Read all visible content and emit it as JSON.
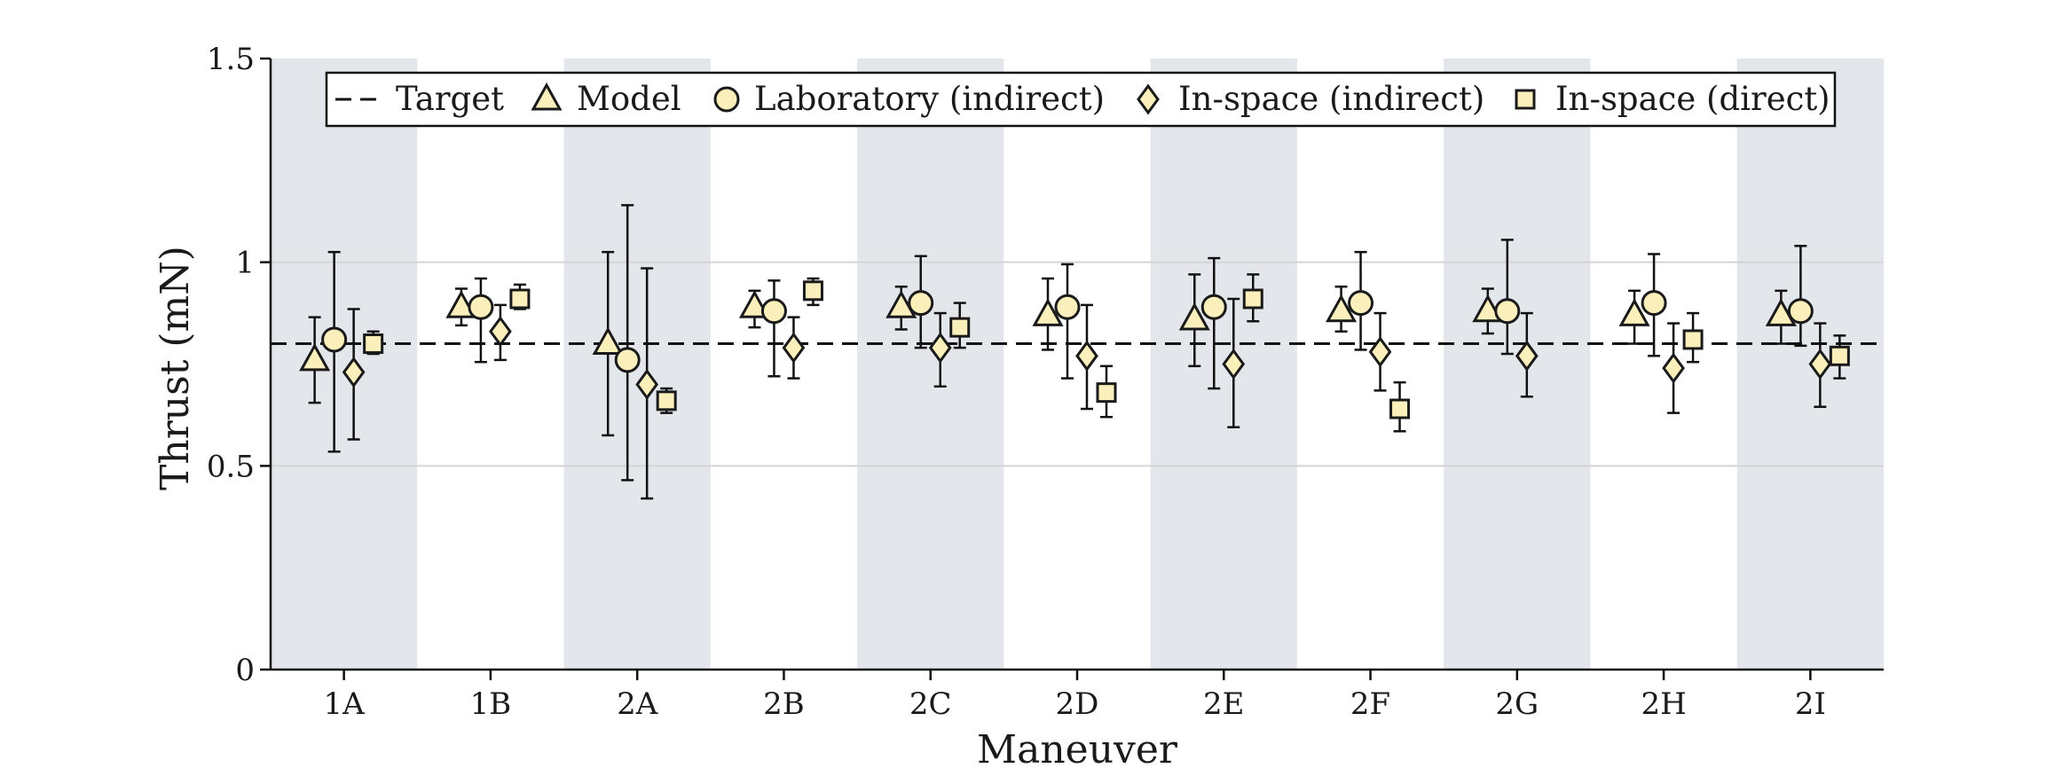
{
  "chart_data": {
    "type": "scatter",
    "xlabel": "Maneuver",
    "ylabel": "Thrust (mN)",
    "ylim": [
      0,
      1.5
    ],
    "yticks": [
      0,
      0.5,
      1,
      1.5
    ],
    "ytick_labels": [
      "0",
      "0.5",
      "1",
      "1.5"
    ],
    "grid": "horizontal",
    "legend_position": "top-center",
    "target_value": 0.8,
    "target_label": "Target",
    "categories": [
      "1A",
      "1B",
      "2A",
      "2B",
      "2C",
      "2D",
      "2E",
      "2F",
      "2G",
      "2H",
      "2I"
    ],
    "shaded_categories": [
      "1A",
      "2A",
      "2C",
      "2E",
      "2G",
      "2I"
    ],
    "colors": {
      "marker_fill": "#fbf0bb",
      "marker_edge": "#1a1a1a",
      "band": "#e3e6ea",
      "grid": "#d4d4d4"
    },
    "series": [
      {
        "name": "Model",
        "marker": "triangle",
        "values": [
          0.76,
          0.89,
          0.8,
          0.89,
          0.89,
          0.87,
          0.86,
          0.88,
          0.88,
          0.87,
          0.87
        ],
        "err_low": [
          0.655,
          0.845,
          0.575,
          0.84,
          0.835,
          0.785,
          0.745,
          0.83,
          0.825,
          0.8,
          0.8
        ],
        "err_high": [
          0.865,
          0.935,
          1.025,
          0.93,
          0.94,
          0.96,
          0.97,
          0.94,
          0.935,
          0.93,
          0.93
        ]
      },
      {
        "name": "Laboratory (indirect)",
        "marker": "circle",
        "values": [
          0.81,
          0.89,
          0.76,
          0.88,
          0.9,
          0.89,
          0.89,
          0.9,
          0.88,
          0.9,
          0.88
        ],
        "err_low": [
          0.535,
          0.755,
          0.465,
          0.72,
          0.79,
          0.715,
          0.69,
          0.785,
          0.775,
          0.77,
          0.795
        ],
        "err_high": [
          1.025,
          0.96,
          1.14,
          0.955,
          1.015,
          0.995,
          1.01,
          1.025,
          1.055,
          1.02,
          1.04
        ]
      },
      {
        "name": "In-space (indirect)",
        "marker": "diamond",
        "values": [
          0.73,
          0.83,
          0.7,
          0.79,
          0.79,
          0.77,
          0.75,
          0.78,
          0.77,
          0.74,
          0.75
        ],
        "err_low": [
          0.565,
          0.76,
          0.42,
          0.715,
          0.695,
          0.64,
          0.595,
          0.685,
          0.67,
          0.63,
          0.645
        ],
        "err_high": [
          0.885,
          0.895,
          0.985,
          0.865,
          0.875,
          0.895,
          0.91,
          0.875,
          0.875,
          0.85,
          0.85
        ]
      },
      {
        "name": "In-space (direct)",
        "marker": "square",
        "values": [
          0.8,
          0.91,
          0.66,
          0.93,
          0.84,
          0.68,
          0.91,
          0.64,
          null,
          0.81,
          0.77
        ],
        "err_low": [
          0.775,
          0.885,
          0.63,
          0.895,
          0.79,
          0.62,
          0.855,
          0.585,
          null,
          0.755,
          0.715
        ],
        "err_high": [
          0.83,
          0.945,
          0.69,
          0.96,
          0.9,
          0.745,
          0.97,
          0.705,
          null,
          0.875,
          0.82
        ]
      }
    ]
  }
}
